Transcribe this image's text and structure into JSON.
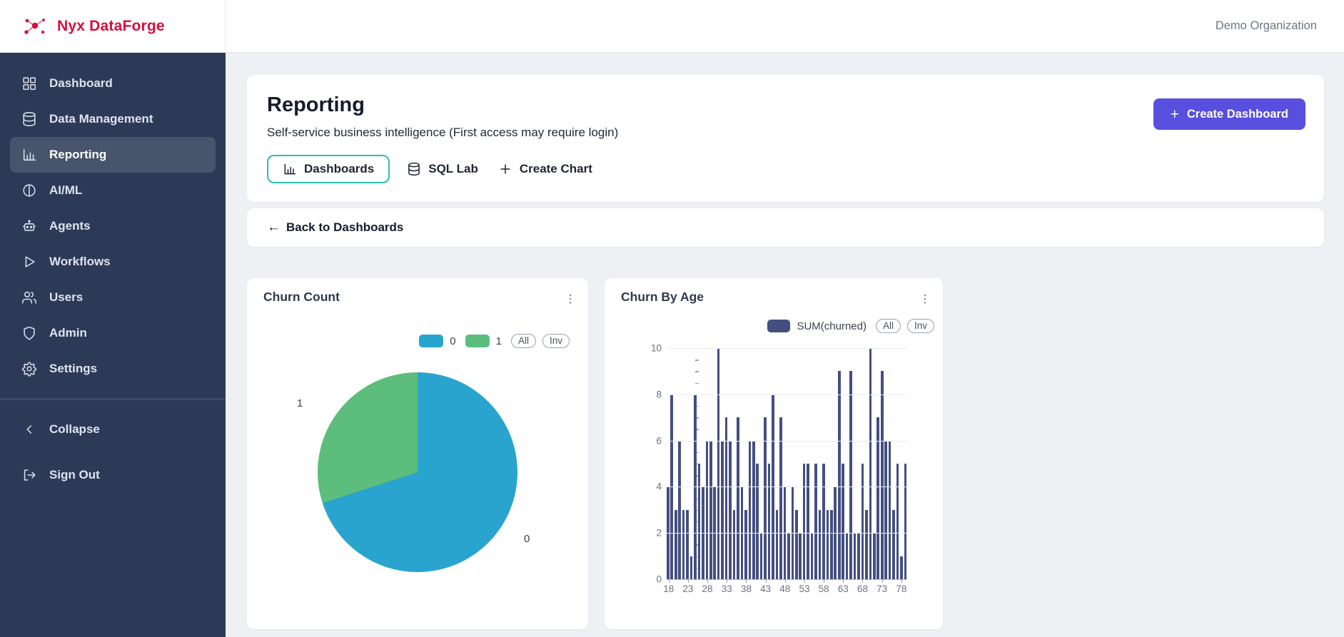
{
  "topbar": {
    "brand": "Nyx DataForge",
    "organization": "Demo Organization"
  },
  "sidebar": {
    "items": [
      {
        "label": "Dashboard",
        "icon": "dashboard-grid-icon",
        "active": false
      },
      {
        "label": "Data Management",
        "icon": "database-icon",
        "active": false
      },
      {
        "label": "Reporting",
        "icon": "bar-chart-icon",
        "active": true
      },
      {
        "label": "AI/ML",
        "icon": "ai-ml-icon",
        "active": false
      },
      {
        "label": "Agents",
        "icon": "robot-icon",
        "active": false
      },
      {
        "label": "Workflows",
        "icon": "play-icon",
        "active": false
      },
      {
        "label": "Users",
        "icon": "users-icon",
        "active": false
      },
      {
        "label": "Admin",
        "icon": "shield-icon",
        "active": false
      },
      {
        "label": "Settings",
        "icon": "gear-icon",
        "active": false
      }
    ],
    "collapse_label": "Collapse",
    "signout_label": "Sign Out"
  },
  "page": {
    "title": "Reporting",
    "subtitle": "Self-service business intelligence (First access may require login)",
    "tabs": [
      {
        "label": "Dashboards",
        "icon": "bar-chart-icon",
        "selected": true
      },
      {
        "label": "SQL Lab",
        "icon": "database-icon",
        "selected": false
      },
      {
        "label": "Create Chart",
        "icon": "plus-icon",
        "selected": false
      }
    ],
    "create_dashboard_label": "Create Dashboard",
    "back_arrow": "←",
    "back_label": "Back to Dashboards"
  },
  "colors": {
    "brand_red": "#d60f3e",
    "sidebar_navy": "#2d3a57",
    "accent_indigo": "#584fdf",
    "tab_teal": "#2fbfac",
    "pie_blue": "#29a4ce",
    "pie_green": "#5cbd7d",
    "bar_navy": "#444f80"
  },
  "chart_data": [
    {
      "type": "pie",
      "title": "Churn Count",
      "legend": [
        {
          "label": "0",
          "color": "#29a4ce"
        },
        {
          "label": "1",
          "color": "#5cbd7d"
        }
      ],
      "segments": [
        {
          "label": "0",
          "value": 70,
          "color": "#29a4ce"
        },
        {
          "label": "1",
          "value": 30,
          "color": "#5cbd7d"
        }
      ],
      "value_note": "percent share estimated from slice angles",
      "legend_controls": [
        "All",
        "Inv"
      ]
    },
    {
      "type": "bar",
      "title": "Churn By Age",
      "series": [
        {
          "name": "SUM(churned)",
          "color": "#444f80",
          "values": [
            4,
            8,
            3,
            6,
            3,
            3,
            1,
            8,
            5,
            4,
            6,
            6,
            4,
            10,
            6,
            7,
            6,
            3,
            7,
            4,
            3,
            6,
            6,
            5,
            2,
            7,
            5,
            8,
            3,
            7,
            4,
            2,
            4,
            3,
            2,
            5,
            5,
            2,
            5,
            3,
            5,
            3,
            3,
            4,
            9,
            5,
            2,
            9,
            2,
            2,
            5,
            3,
            10,
            2,
            7,
            9,
            6,
            6,
            3,
            5,
            1,
            5
          ]
        }
      ],
      "x": [
        18,
        19,
        20,
        21,
        22,
        23,
        24,
        25,
        26,
        27,
        28,
        29,
        30,
        31,
        32,
        33,
        34,
        35,
        36,
        37,
        38,
        39,
        40,
        41,
        42,
        43,
        44,
        45,
        46,
        47,
        48,
        49,
        50,
        51,
        52,
        53,
        54,
        55,
        56,
        57,
        58,
        59,
        60,
        61,
        62,
        63,
        64,
        65,
        66,
        67,
        68,
        69,
        70,
        71,
        72,
        73,
        74,
        75,
        76,
        77,
        78,
        79
      ],
      "x_tick_labels": [
        "18",
        "23",
        "28",
        "33",
        "38",
        "43",
        "48",
        "53",
        "58",
        "63",
        "68",
        "73",
        "78"
      ],
      "xlabel": "",
      "ylabel": "",
      "ylim": [
        0,
        10
      ],
      "y_ticks": [
        0,
        2,
        4,
        6,
        8,
        10
      ],
      "grid": true,
      "legend_position": "top-right",
      "legend_controls": [
        "All",
        "Inv"
      ]
    }
  ]
}
